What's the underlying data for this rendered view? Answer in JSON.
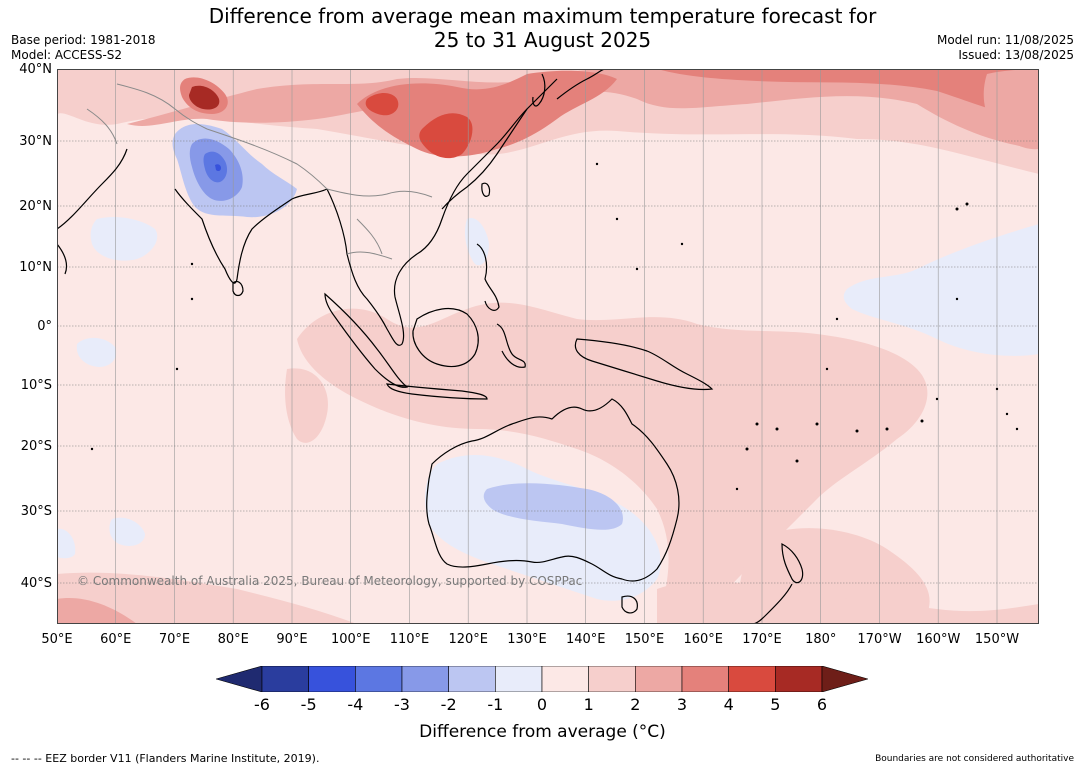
{
  "title": {
    "line1": "Difference from average mean maximum temperature forecast for",
    "line2": "25 to 31 August 2025"
  },
  "meta_left": {
    "base_period": "Base period: 1981-2018",
    "model": "Model: ACCESS-S2"
  },
  "meta_right": {
    "model_run": "Model run: 11/08/2025",
    "issued": "Issued: 13/08/2025"
  },
  "map": {
    "copyright": "© Commonwealth of Australia 2025, Bureau of Meteorology, supported by COSPPac",
    "lat_labels": [
      "40°N",
      "30°N",
      "20°N",
      "10°N",
      "0°",
      "10°S",
      "20°S",
      "30°S",
      "40°S"
    ],
    "lon_labels": [
      "50°E",
      "60°E",
      "70°E",
      "80°E",
      "90°E",
      "100°E",
      "110°E",
      "120°E",
      "130°E",
      "140°E",
      "150°E",
      "160°E",
      "170°E",
      "180°",
      "170°W",
      "160°W",
      "150°W"
    ]
  },
  "colorbar": {
    "title": "Difference from average (°C)",
    "ticks": [
      "-6",
      "-5",
      "-4",
      "-3",
      "-2",
      "-1",
      "0",
      "1",
      "2",
      "3",
      "4",
      "5",
      "6"
    ],
    "colors": [
      "#2a3d9e",
      "#3752dc",
      "#5c77e2",
      "#8799e8",
      "#bcc6f2",
      "#e8ecfa",
      "#fce8e6",
      "#f6cfcc",
      "#eda8a4",
      "#e4817b",
      "#d94a3e",
      "#a72a24"
    ],
    "under_color": "#1f2a70",
    "over_color": "#6e1e18"
  },
  "footer": {
    "left": "--  --  -- EEZ border V11 (Flanders Marine Institute, 2019).",
    "right": "Boundaries are not considered authoritative"
  }
}
